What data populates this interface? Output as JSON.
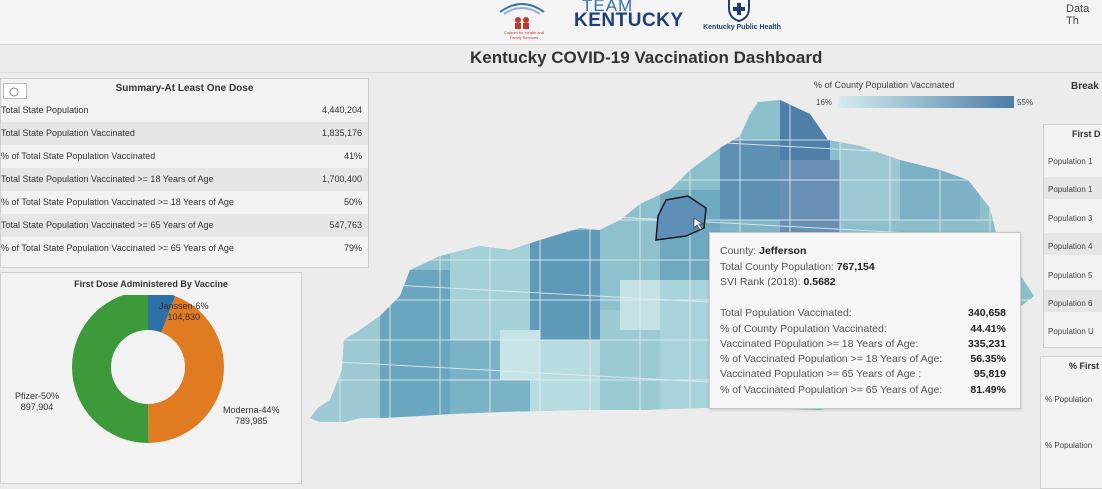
{
  "header": {
    "logo_cabinet_text": "Cabinet for Health and Family Services",
    "logo_team_line1": "TEAM",
    "logo_team_line2": "KENTUCKY",
    "logo_kph_text": "Kentucky Public Health",
    "data_link": "Data Th"
  },
  "title": "Kentucky COVID-19 Vaccination Dashboard",
  "summary": {
    "title": "Summary-At Least One Dose",
    "rows": [
      {
        "label": "Total State Population",
        "value": "4,440,204"
      },
      {
        "label": "Total State Population Vaccinated",
        "value": "1,835,176"
      },
      {
        "label": "% of Total State Population Vaccinated",
        "value": "41%"
      },
      {
        "label": "Total State Population Vaccinated >= 18 Years of Age",
        "value": "1,700,400"
      },
      {
        "label": "% of Total State Population Vaccinated >= 18 Years of Age",
        "value": "50%"
      },
      {
        "label": "Total State Population Vaccinated >= 65 Years of Age",
        "value": "547,763"
      },
      {
        "label": "% of Total State Population Vaccinated >= 65 Years of Age",
        "value": "79%"
      }
    ]
  },
  "donut": {
    "title": "First Dose Administered By Vaccine",
    "slices": [
      {
        "name": "Janssen",
        "pct_label": "Janssen-6%",
        "count": "104,830",
        "value": 104830,
        "color": "#2f6fa8"
      },
      {
        "name": "Moderna",
        "pct_label": "Moderna-44%",
        "count": "789,985",
        "value": 789985,
        "color": "#e07b22"
      },
      {
        "name": "Pfizer",
        "pct_label": "Pfizer-50%",
        "count": "897,904",
        "value": 897904,
        "color": "#3d9a3a"
      }
    ]
  },
  "legend": {
    "title": "% of County Population Vaccinated",
    "min": "16%",
    "max": "55%",
    "color_min": "#d6ecee",
    "color_max": "#4b7ea8"
  },
  "tooltip": {
    "county_label": "County:",
    "county": "Jefferson",
    "population_label": "Total County Population:",
    "population": "767,154",
    "svi_label": "SVI Rank (2018):",
    "svi": "0.5682",
    "rows": [
      {
        "label": "Total Population Vaccinated:",
        "value": "340,658"
      },
      {
        "label": "% of County Population Vaccinated:",
        "value": "44.41%"
      },
      {
        "label": "Vaccinated Population >= 18 Years of Age:",
        "value": "335,231"
      },
      {
        "label": "% of Vaccinated Population >= 18 Years of Age:",
        "value": "56.35%"
      },
      {
        "label": "Vaccinated Population >= 65 Years of Age :",
        "value": "95,819"
      },
      {
        "label": "% of Vaccinated Population >= 65 Years of Age:",
        "value": "81.49%"
      }
    ]
  },
  "right": {
    "label": "Break",
    "panel1_title": "First D",
    "panel1_rows": [
      "Population 1",
      "Population 1",
      "Population 3",
      "Population 4",
      "Population 5",
      "Population 6",
      "Population U"
    ],
    "panel2_title": "% First",
    "panel2_rows": [
      "% Population",
      "% Population"
    ]
  }
}
